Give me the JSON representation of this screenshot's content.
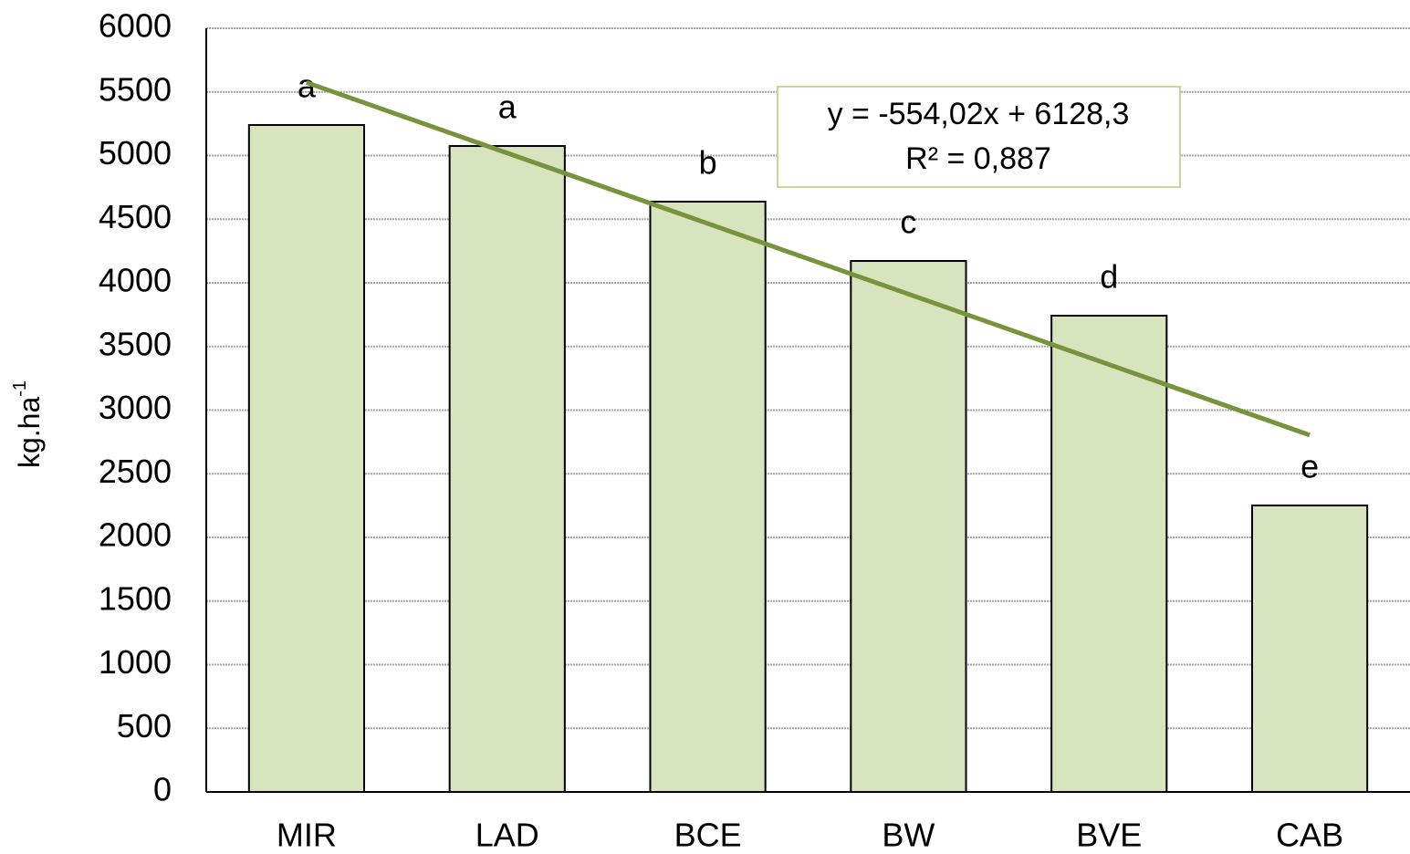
{
  "chart_data": {
    "type": "bar",
    "ylabel": "kg.ha",
    "ylabel_sup": "-1",
    "categories": [
      "MIR",
      "LAD",
      "BCE",
      "BW",
      "BVE",
      "CAB"
    ],
    "values": [
      5240,
      5075,
      4638,
      4172,
      3742,
      2251
    ],
    "annotations": [
      "a",
      "a",
      "b",
      "c",
      "d",
      "e"
    ],
    "color": "#d7e4bd",
    "ylim": [
      0,
      6000
    ],
    "yticks": [
      0,
      500,
      1000,
      1500,
      2000,
      2500,
      3000,
      3500,
      4000,
      4500,
      5000,
      5500,
      6000
    ],
    "grid": true,
    "trendline": {
      "color": "#77933c",
      "start": 5574,
      "end": 2804,
      "equation": "y = -554,02x + 6128,3",
      "r2": "R² = 0,887"
    }
  }
}
